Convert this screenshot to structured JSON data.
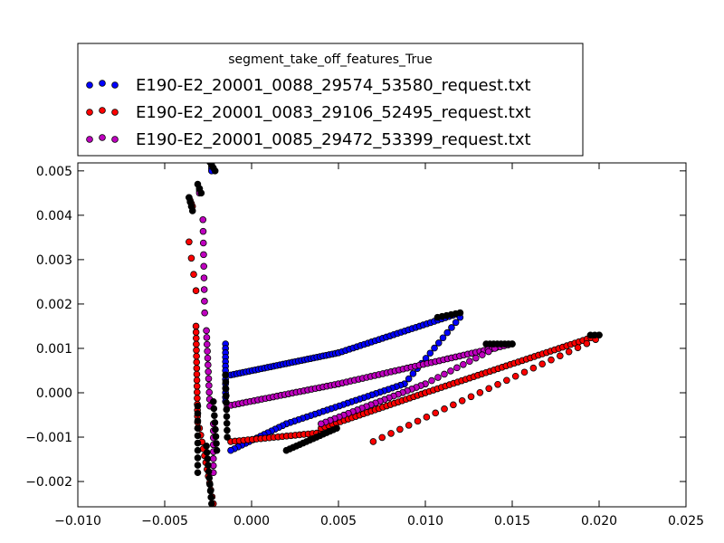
{
  "chart_data": {
    "type": "scatter",
    "title": "",
    "xlabel": "",
    "ylabel": "",
    "xlim": [
      -0.01,
      0.025
    ],
    "ylim": [
      -0.00257,
      0.00518
    ],
    "xticks": [
      -0.01,
      -0.005,
      0.0,
      0.005,
      0.01,
      0.015,
      0.02,
      0.025
    ],
    "xtick_labels": [
      "−0.010",
      "−0.005",
      "0.000",
      "0.005",
      "0.010",
      "0.015",
      "0.020",
      "0.025"
    ],
    "yticks": [
      -0.002,
      -0.001,
      0.0,
      0.001,
      0.002,
      0.003,
      0.004,
      0.005
    ],
    "ytick_labels": [
      "−0.002",
      "−0.001",
      "0.000",
      "0.001",
      "0.002",
      "0.003",
      "0.004",
      "0.005"
    ],
    "grid": false,
    "legend": {
      "title": "segment_take_off_features_True",
      "placement": "above"
    },
    "series": [
      {
        "name": "E190-E2_20001_0088_29574_53580_request.txt",
        "color": "#0000ff",
        "segments": [
          {
            "from": [
              -0.0023,
              0.0051
            ],
            "to": [
              -0.0023,
              0.005
            ],
            "n": 3
          },
          {
            "from": [
              -0.0015,
              0.0011
            ],
            "to": [
              -0.0015,
              -0.0002
            ],
            "n": 14
          },
          {
            "from": [
              -0.0012,
              0.0004
            ],
            "to": [
              0.005,
              0.0009
            ],
            "n": 36
          },
          {
            "from": [
              0.005,
              0.0009
            ],
            "to": [
              0.012,
              0.0018
            ],
            "n": 34
          },
          {
            "from": [
              0.012,
              0.0017
            ],
            "to": [
              0.0088,
              0.0002
            ],
            "n": 14
          },
          {
            "from": [
              0.0088,
              0.0002
            ],
            "to": [
              0.002,
              -0.0007
            ],
            "n": 30
          },
          {
            "from": [
              0.002,
              -0.0007
            ],
            "to": [
              -0.0012,
              -0.0013
            ],
            "n": 16
          }
        ]
      },
      {
        "name": "E190-E2_20001_0083_29106_52495_request.txt",
        "color": "#ff0000",
        "segments": [
          {
            "from": [
              -0.0036,
              0.0044
            ],
            "to": [
              -0.0034,
              0.0042
            ],
            "n": 4
          },
          {
            "from": [
              -0.0036,
              0.0034
            ],
            "to": [
              -0.0032,
              0.0023
            ],
            "n": 4
          },
          {
            "from": [
              -0.0032,
              0.0015
            ],
            "to": [
              -0.0031,
              -0.0008
            ],
            "n": 18
          },
          {
            "from": [
              -0.003,
              -0.0008
            ],
            "to": [
              -0.0022,
              -0.0025
            ],
            "n": 12
          },
          {
            "from": [
              -0.0012,
              -0.0011
            ],
            "to": [
              0.004,
              -0.0009
            ],
            "n": 22
          },
          {
            "from": [
              0.004,
              -0.0008
            ],
            "to": [
              0.01,
              0.0
            ],
            "n": 28
          },
          {
            "from": [
              0.01,
              0.0
            ],
            "to": [
              0.02,
              0.0013
            ],
            "n": 44
          },
          {
            "from": [
              0.0198,
              0.0012
            ],
            "to": [
              0.007,
              -0.0011
            ],
            "n": 26
          }
        ]
      },
      {
        "name": "E190-E2_20001_0085_29472_53399_request.txt",
        "color": "#bf00bf",
        "segments": [
          {
            "from": [
              -0.003,
              0.0046
            ],
            "to": [
              -0.003,
              0.0045
            ],
            "n": 3
          },
          {
            "from": [
              -0.0028,
              0.0039
            ],
            "to": [
              -0.0027,
              0.0018
            ],
            "n": 9
          },
          {
            "from": [
              -0.0026,
              0.0014
            ],
            "to": [
              -0.0024,
              -0.0003
            ],
            "n": 12
          },
          {
            "from": [
              -0.0022,
              -0.0007
            ],
            "to": [
              -0.0022,
              -0.0018
            ],
            "n": 8
          },
          {
            "from": [
              -0.0014,
              -0.0003
            ],
            "to": [
              0.005,
              0.0002
            ],
            "n": 30
          },
          {
            "from": [
              0.005,
              0.0002
            ],
            "to": [
              0.015,
              0.0011
            ],
            "n": 44
          },
          {
            "from": [
              0.014,
              0.001
            ],
            "to": [
              0.01,
              0.0002
            ],
            "n": 12
          },
          {
            "from": [
              0.01,
              0.0002
            ],
            "to": [
              0.004,
              -0.0007
            ],
            "n": 24
          }
        ]
      },
      {
        "name": "",
        "color": "#000000",
        "segments": [
          {
            "from": [
              -0.0024,
              0.0052
            ],
            "to": [
              -0.0021,
              0.005
            ],
            "n": 4
          },
          {
            "from": [
              -0.0036,
              0.0044
            ],
            "to": [
              -0.0034,
              0.0041
            ],
            "n": 4
          },
          {
            "from": [
              -0.0031,
              0.0047
            ],
            "to": [
              -0.0029,
              0.0045
            ],
            "n": 3
          },
          {
            "from": [
              -0.0015,
              0.0004
            ],
            "to": [
              -0.0014,
              -0.001
            ],
            "n": 10
          },
          {
            "from": [
              -0.0031,
              -0.0003
            ],
            "to": [
              -0.0031,
              -0.0018
            ],
            "n": 10
          },
          {
            "from": [
              -0.0026,
              -0.0012
            ],
            "to": [
              -0.0023,
              -0.0025
            ],
            "n": 10
          },
          {
            "from": [
              -0.0022,
              -0.0002
            ],
            "to": [
              -0.002,
              -0.0013
            ],
            "n": 8
          },
          {
            "from": [
              0.002,
              -0.0013
            ],
            "to": [
              0.0049,
              -0.0008
            ],
            "n": 16
          },
          {
            "from": [
              0.0107,
              0.0017
            ],
            "to": [
              0.012,
              0.0018
            ],
            "n": 6
          },
          {
            "from": [
              0.0135,
              0.0011
            ],
            "to": [
              0.015,
              0.0011
            ],
            "n": 8
          },
          {
            "from": [
              0.0195,
              0.0013
            ],
            "to": [
              0.02,
              0.0013
            ],
            "n": 3
          }
        ]
      }
    ],
    "legend_entries": [
      {
        "label": "E190-E2_20001_0088_29574_53580_request.txt",
        "color": "#0000ff"
      },
      {
        "label": "E190-E2_20001_0083_29106_52495_request.txt",
        "color": "#ff0000"
      },
      {
        "label": "E190-E2_20001_0085_29472_53399_request.txt",
        "color": "#bf00bf"
      }
    ]
  }
}
